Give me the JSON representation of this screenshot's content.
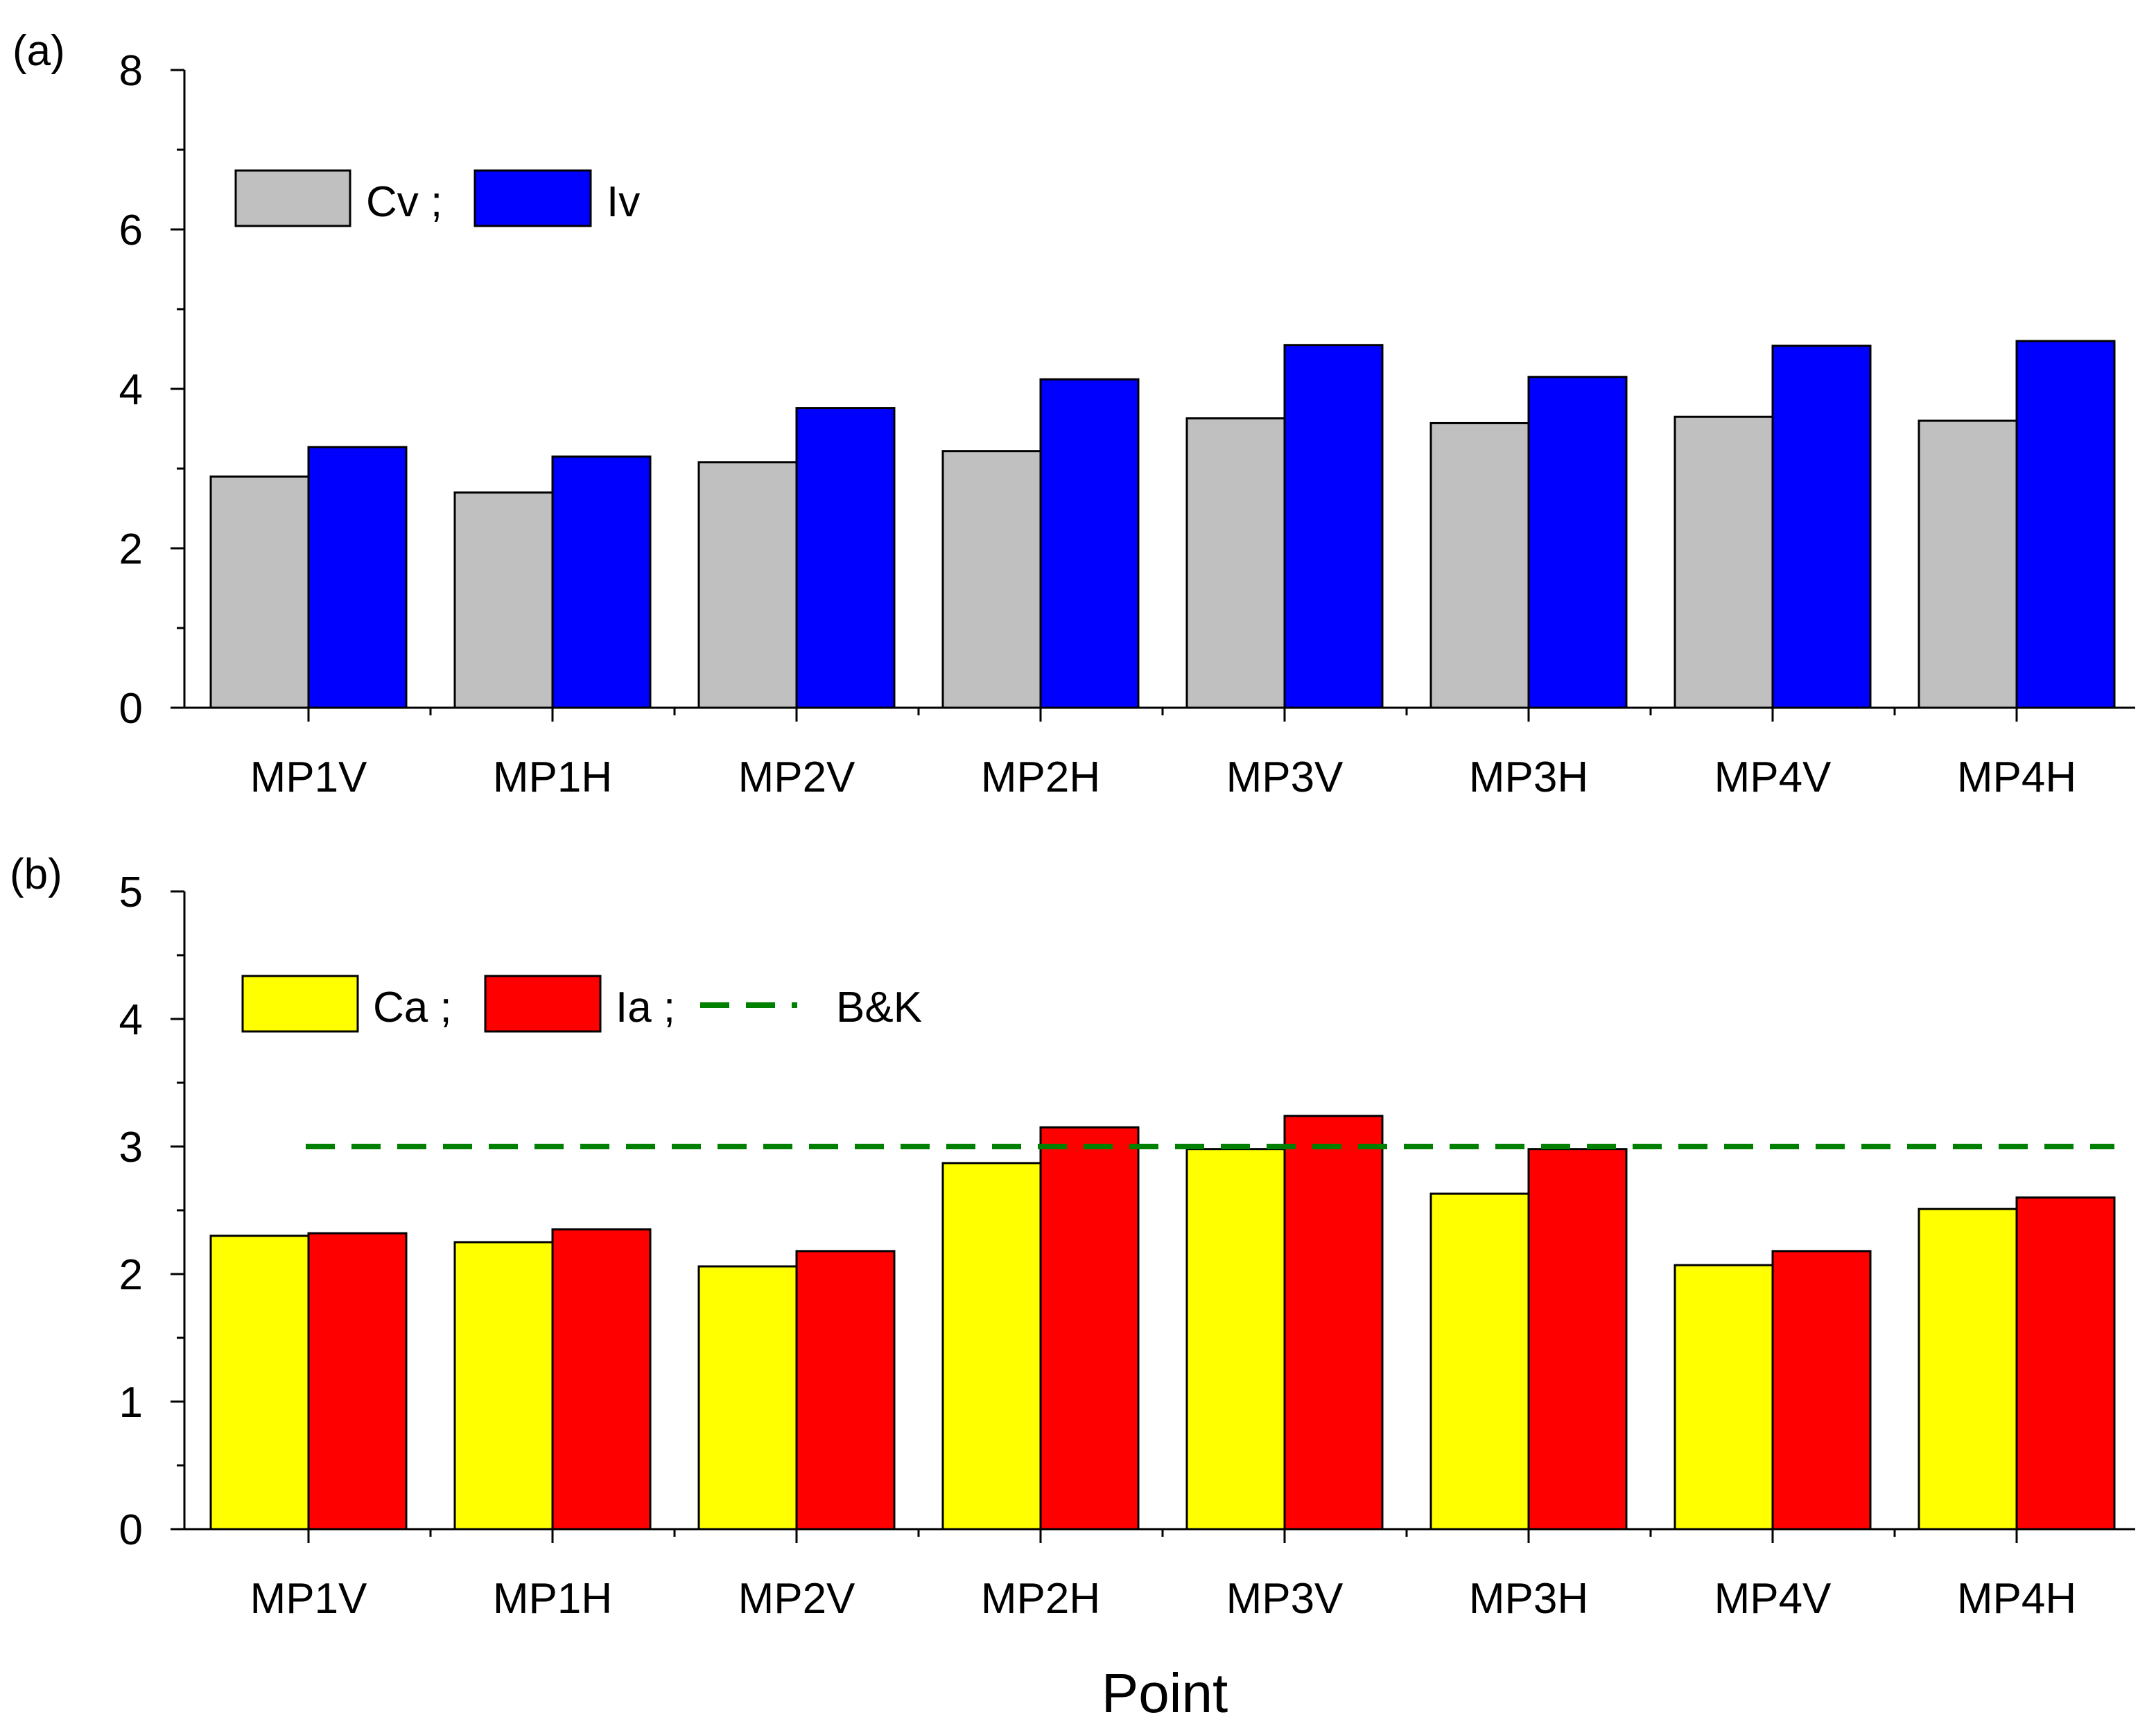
{
  "chart_data": [
    {
      "type": "bar",
      "panel_label": "(a)",
      "categories": [
        "MP1V",
        "MP1H",
        "MP2V",
        "MP2H",
        "MP3V",
        "MP3H",
        "MP4V",
        "MP4H"
      ],
      "series": [
        {
          "name": "Cv",
          "color": "#c0c0c0",
          "values": [
            2.9,
            2.7,
            3.08,
            3.22,
            3.63,
            3.57,
            3.65,
            3.6
          ]
        },
        {
          "name": "Iv",
          "color": "#0000ff",
          "values": [
            3.27,
            3.15,
            3.76,
            4.12,
            4.55,
            4.15,
            4.54,
            4.6
          ]
        }
      ],
      "legend": [
        {
          "label": "Cv ;",
          "color": "#c0c0c0"
        },
        {
          "label": "Iv",
          "color": "#0000ff"
        }
      ],
      "ylim": [
        0,
        8
      ],
      "yticks": [
        "0",
        "2",
        "4",
        "6",
        "8"
      ],
      "xlabel": "",
      "ylabel": ""
    },
    {
      "type": "bar",
      "panel_label": "(b)",
      "categories": [
        "MP1V",
        "MP1H",
        "MP2V",
        "MP2H",
        "MP3V",
        "MP3H",
        "MP4V",
        "MP4H"
      ],
      "series": [
        {
          "name": "Ca",
          "color": "#ffff00",
          "values": [
            2.3,
            2.25,
            2.06,
            2.87,
            2.98,
            2.63,
            2.07,
            2.51
          ]
        },
        {
          "name": "Ia",
          "color": "#ff0000",
          "values": [
            2.32,
            2.35,
            2.18,
            3.15,
            3.24,
            2.98,
            2.18,
            2.6
          ]
        }
      ],
      "reference_line": {
        "name": "B&K",
        "value": 3,
        "color": "#008000",
        "style": "dashed"
      },
      "legend": [
        {
          "label": "Ca ;",
          "color": "#ffff00"
        },
        {
          "label": "Ia ;",
          "color": "#ff0000"
        },
        {
          "label": "B&K",
          "color": "#008000"
        }
      ],
      "ylim": [
        0,
        5
      ],
      "yticks": [
        "0",
        "1",
        "2",
        "3",
        "4",
        "5"
      ],
      "xlabel": "Point",
      "ylabel": ""
    }
  ]
}
